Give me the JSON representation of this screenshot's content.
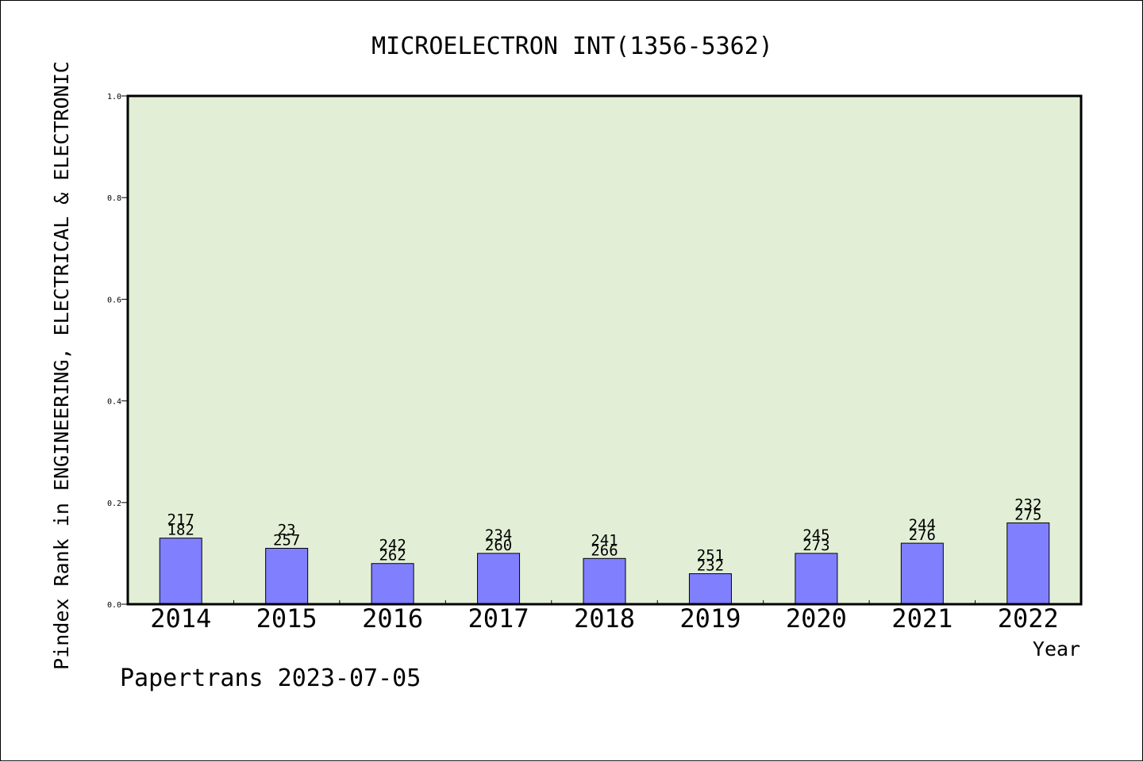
{
  "chart_data": {
    "type": "bar",
    "title": "MICROELECTRON INT(1356-5362)",
    "xlabel": "Year",
    "ylabel": "Pindex Rank in ENGINEERING, ELECTRICAL & ELECTRONIC",
    "ylim": [
      0,
      1.0
    ],
    "yticks": [
      "0.0",
      "0.2",
      "0.4",
      "0.6",
      "0.8",
      "1.0"
    ],
    "grid": false,
    "categories": [
      "2014",
      "2015",
      "2016",
      "2017",
      "2018",
      "2019",
      "2020",
      "2021",
      "2022"
    ],
    "values": [
      0.13,
      0.11,
      0.08,
      0.1,
      0.09,
      0.06,
      0.1,
      0.12,
      0.16
    ],
    "labels_top": [
      "217",
      "23",
      "242",
      "234",
      "241",
      "251",
      "245",
      "244",
      "232"
    ],
    "labels_bottom": [
      "182",
      "257",
      "262",
      "260",
      "266",
      "232",
      "273",
      "276",
      "275"
    ],
    "colors": {
      "bar_fill": "#8080ff",
      "plot_background": "#e2efd6"
    }
  },
  "footer": {
    "credit": "Papertrans 2023-07-05"
  }
}
